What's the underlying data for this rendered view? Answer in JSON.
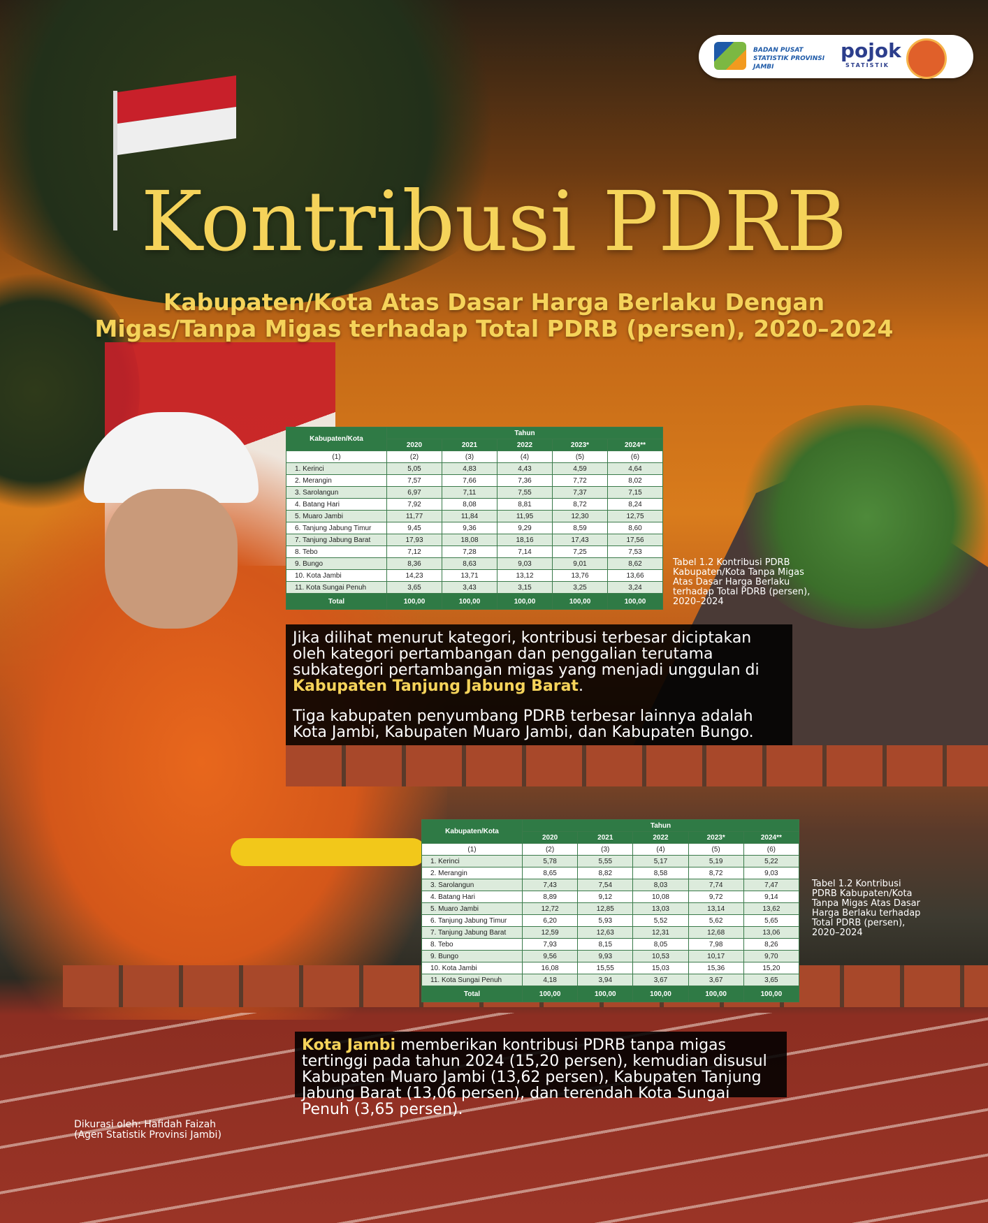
{
  "header": {
    "logo_text": "BADAN PUSAT STATISTIK PROVINSI JAMBI",
    "pojok": "pojok",
    "pojok_sub": "STATISTIK"
  },
  "title": "Kontribusi PDRB",
  "subtitle": [
    "Kabupaten/Kota Atas Dasar Harga Berlaku Dengan",
    "Migas/Tanpa Migas terhadap Total PDRB (persen), 2020–2024"
  ],
  "tables": [
    {
      "region_header": "Kabupaten/Kota",
      "year_header": "Tahun",
      "years": [
        "2020",
        "2021",
        "2022",
        "2023*",
        "2024**"
      ],
      "column_numbers": [
        "(1)",
        "(2)",
        "(3)",
        "(4)",
        "(5)",
        "(6)"
      ],
      "rows": [
        [
          "1. Kerinci",
          "5,05",
          "4,83",
          "4,43",
          "4,59",
          "4,64"
        ],
        [
          "2. Merangin",
          "7,57",
          "7,66",
          "7,36",
          "7,72",
          "8,02"
        ],
        [
          "3. Sarolangun",
          "6,97",
          "7,11",
          "7,55",
          "7,37",
          "7,15"
        ],
        [
          "4. Batang Hari",
          "7,92",
          "8,08",
          "8,81",
          "8,72",
          "8,24"
        ],
        [
          "5. Muaro Jambi",
          "11,77",
          "11,84",
          "11,95",
          "12,30",
          "12,75"
        ],
        [
          "6. Tanjung Jabung Timur",
          "9,45",
          "9,36",
          "9,29",
          "8,59",
          "8,60"
        ],
        [
          "7. Tanjung Jabung Barat",
          "17,93",
          "18,08",
          "18,16",
          "17,43",
          "17,56"
        ],
        [
          "8. Tebo",
          "7,12",
          "7,28",
          "7,14",
          "7,25",
          "7,53"
        ],
        [
          "9. Bungo",
          "8,36",
          "8,63",
          "9,03",
          "9,01",
          "8,62"
        ],
        [
          "10. Kota Jambi",
          "14,23",
          "13,71",
          "13,12",
          "13,76",
          "13,66"
        ],
        [
          "11. Kota Sungai Penuh",
          "3,65",
          "3,43",
          "3,15",
          "3,25",
          "3,24"
        ]
      ],
      "total": [
        "Total",
        "100,00",
        "100,00",
        "100,00",
        "100,00",
        "100,00"
      ],
      "caption": "Tabel 1.2 Kontribusi PDRB Kabupaten/Kota Tanpa Migas Atas Dasar Harga Berlaku terhadap Total PDRB (persen), 2020–2024"
    },
    {
      "region_header": "Kabupaten/Kota",
      "year_header": "Tahun",
      "years": [
        "2020",
        "2021",
        "2022",
        "2023*",
        "2024**"
      ],
      "column_numbers": [
        "(1)",
        "(2)",
        "(3)",
        "(4)",
        "(5)",
        "(6)"
      ],
      "rows": [
        [
          "1. Kerinci",
          "5,78",
          "5,55",
          "5,17",
          "5,19",
          "5,22"
        ],
        [
          "2. Merangin",
          "8,65",
          "8,82",
          "8,58",
          "8,72",
          "9,03"
        ],
        [
          "3. Sarolangun",
          "7,43",
          "7,54",
          "8,03",
          "7,74",
          "7,47"
        ],
        [
          "4. Batang Hari",
          "8,89",
          "9,12",
          "10,08",
          "9,72",
          "9,14"
        ],
        [
          "5. Muaro Jambi",
          "12,72",
          "12,85",
          "13,03",
          "13,14",
          "13,62"
        ],
        [
          "6. Tanjung Jabung Timur",
          "6,20",
          "5,93",
          "5,52",
          "5,62",
          "5,65"
        ],
        [
          "7. Tanjung Jabung Barat",
          "12,59",
          "12,63",
          "12,31",
          "12,68",
          "13,06"
        ],
        [
          "8. Tebo",
          "7,93",
          "8,15",
          "8,05",
          "7,98",
          "8,26"
        ],
        [
          "9. Bungo",
          "9,56",
          "9,93",
          "10,53",
          "10,17",
          "9,70"
        ],
        [
          "10. Kota Jambi",
          "16,08",
          "15,55",
          "15,03",
          "15,36",
          "15,20"
        ],
        [
          "11. Kota Sungai Penuh",
          "4,18",
          "3,94",
          "3,67",
          "3,67",
          "3,65"
        ]
      ],
      "total": [
        "Total",
        "100,00",
        "100,00",
        "100,00",
        "100,00",
        "100,00"
      ],
      "caption": "Tabel 1.2 Kontribusi PDRB Kabupaten/Kota Tanpa Migas Atas Dasar Harga Berlaku terhadap Total PDRB (persen), 2020–2024"
    }
  ],
  "paragraph1": {
    "lead": "Jika dilihat menurut kategori, kontribusi terbesar diciptakan oleh kategori pertambangan dan penggalian terutama subkategori pertambangan migas yang menjadi unggulan di ",
    "bold": "Kabupaten Tanjung Jabung Barat",
    "end": ".",
    "second": "Tiga kabupaten penyumbang PDRB terbesar lainnya adalah Kota Jambi, Kabupaten Muaro Jambi, dan Kabupaten Bungo."
  },
  "paragraph2": {
    "bold": "Kota Jambi",
    "rest": " memberikan kontribusi PDRB tanpa migas tertinggi pada tahun 2024 (15,20 persen), kemudian disusul Kabupaten Muaro Jambi (13,62 persen), Kabupaten Tanjung Jabung Barat (13,06 persen), dan terendah Kota Sungai Penuh (3,65 persen)."
  },
  "credits": [
    "Dikurasi oleh: Hafidah Faizah",
    "(Agen Statistik Provinsi Jambi)"
  ]
}
